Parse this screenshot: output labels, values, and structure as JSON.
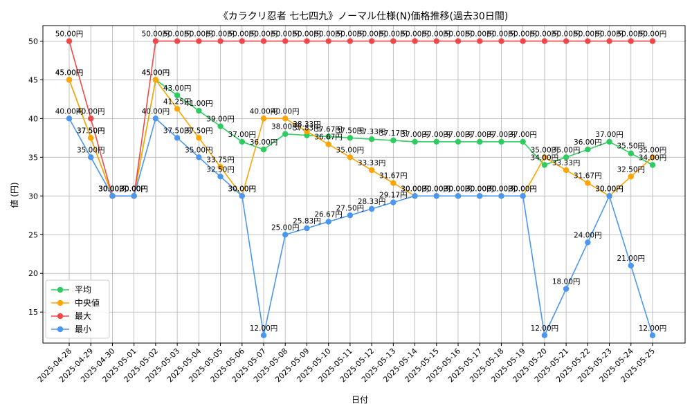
{
  "chart_data": {
    "type": "line",
    "title": "《カラクリ忍者 七七四九》ノーマル仕様(N)価格推移(過去30日間)",
    "xlabel": "日付",
    "ylabel": "値 (円)",
    "ylim": [
      11,
      52
    ],
    "yticks": [
      15,
      20,
      25,
      30,
      35,
      40,
      45,
      50
    ],
    "grid": true,
    "legend_position": "lower-left",
    "value_suffix": "円",
    "categories": [
      "2025-04-28",
      "2025-04-29",
      "2025-04-30",
      "2025-05-01",
      "2025-05-02",
      "2025-05-03",
      "2025-05-04",
      "2025-05-05",
      "2025-05-06",
      "2025-05-07",
      "2025-05-08",
      "2025-05-09",
      "2025-05-10",
      "2025-05-11",
      "2025-05-12",
      "2025-05-13",
      "2025-05-14",
      "2025-05-15",
      "2025-05-16",
      "2025-05-17",
      "2025-05-18",
      "2025-05-19",
      "2025-05-20",
      "2025-05-21",
      "2025-05-22",
      "2025-05-23",
      "2025-05-24",
      "2025-05-25"
    ],
    "series": [
      {
        "name": "平均",
        "color": "#2ecc5f",
        "values": [
          45.0,
          37.5,
          30.0,
          30.0,
          45.0,
          43.0,
          41.0,
          39.0,
          37.0,
          36.0,
          38.0,
          37.83,
          37.67,
          37.5,
          37.33,
          37.17,
          37.0,
          37.0,
          37.0,
          37.0,
          37.0,
          37.0,
          34.0,
          35.0,
          36.0,
          37.0,
          35.5,
          34.0
        ]
      },
      {
        "name": "中央値",
        "color": "#ffa500",
        "values": [
          45.0,
          37.5,
          30.0,
          30.0,
          45.0,
          41.25,
          37.5,
          33.75,
          30.0,
          40.0,
          40.0,
          38.33,
          36.67,
          35.0,
          33.33,
          31.67,
          30.0,
          30.0,
          30.0,
          30.0,
          30.0,
          30.0,
          35.0,
          33.33,
          31.67,
          30.0,
          32.5,
          35.0
        ]
      },
      {
        "name": "最大",
        "color": "#f04848",
        "values": [
          50.0,
          40.0,
          30.0,
          30.0,
          50.0,
          50.0,
          50.0,
          50.0,
          50.0,
          50.0,
          50.0,
          50.0,
          50.0,
          50.0,
          50.0,
          50.0,
          50.0,
          50.0,
          50.0,
          50.0,
          50.0,
          50.0,
          50.0,
          50.0,
          50.0,
          50.0,
          50.0,
          50.0
        ]
      },
      {
        "name": "最小",
        "color": "#4a96f0",
        "values": [
          40.0,
          35.0,
          30.0,
          30.0,
          40.0,
          37.5,
          35.0,
          32.5,
          30.0,
          12.0,
          25.0,
          25.83,
          26.67,
          27.5,
          28.33,
          29.17,
          30.0,
          30.0,
          30.0,
          30.0,
          30.0,
          30.0,
          12.0,
          18.0,
          24.0,
          30.0,
          21.0,
          12.0
        ]
      }
    ]
  }
}
